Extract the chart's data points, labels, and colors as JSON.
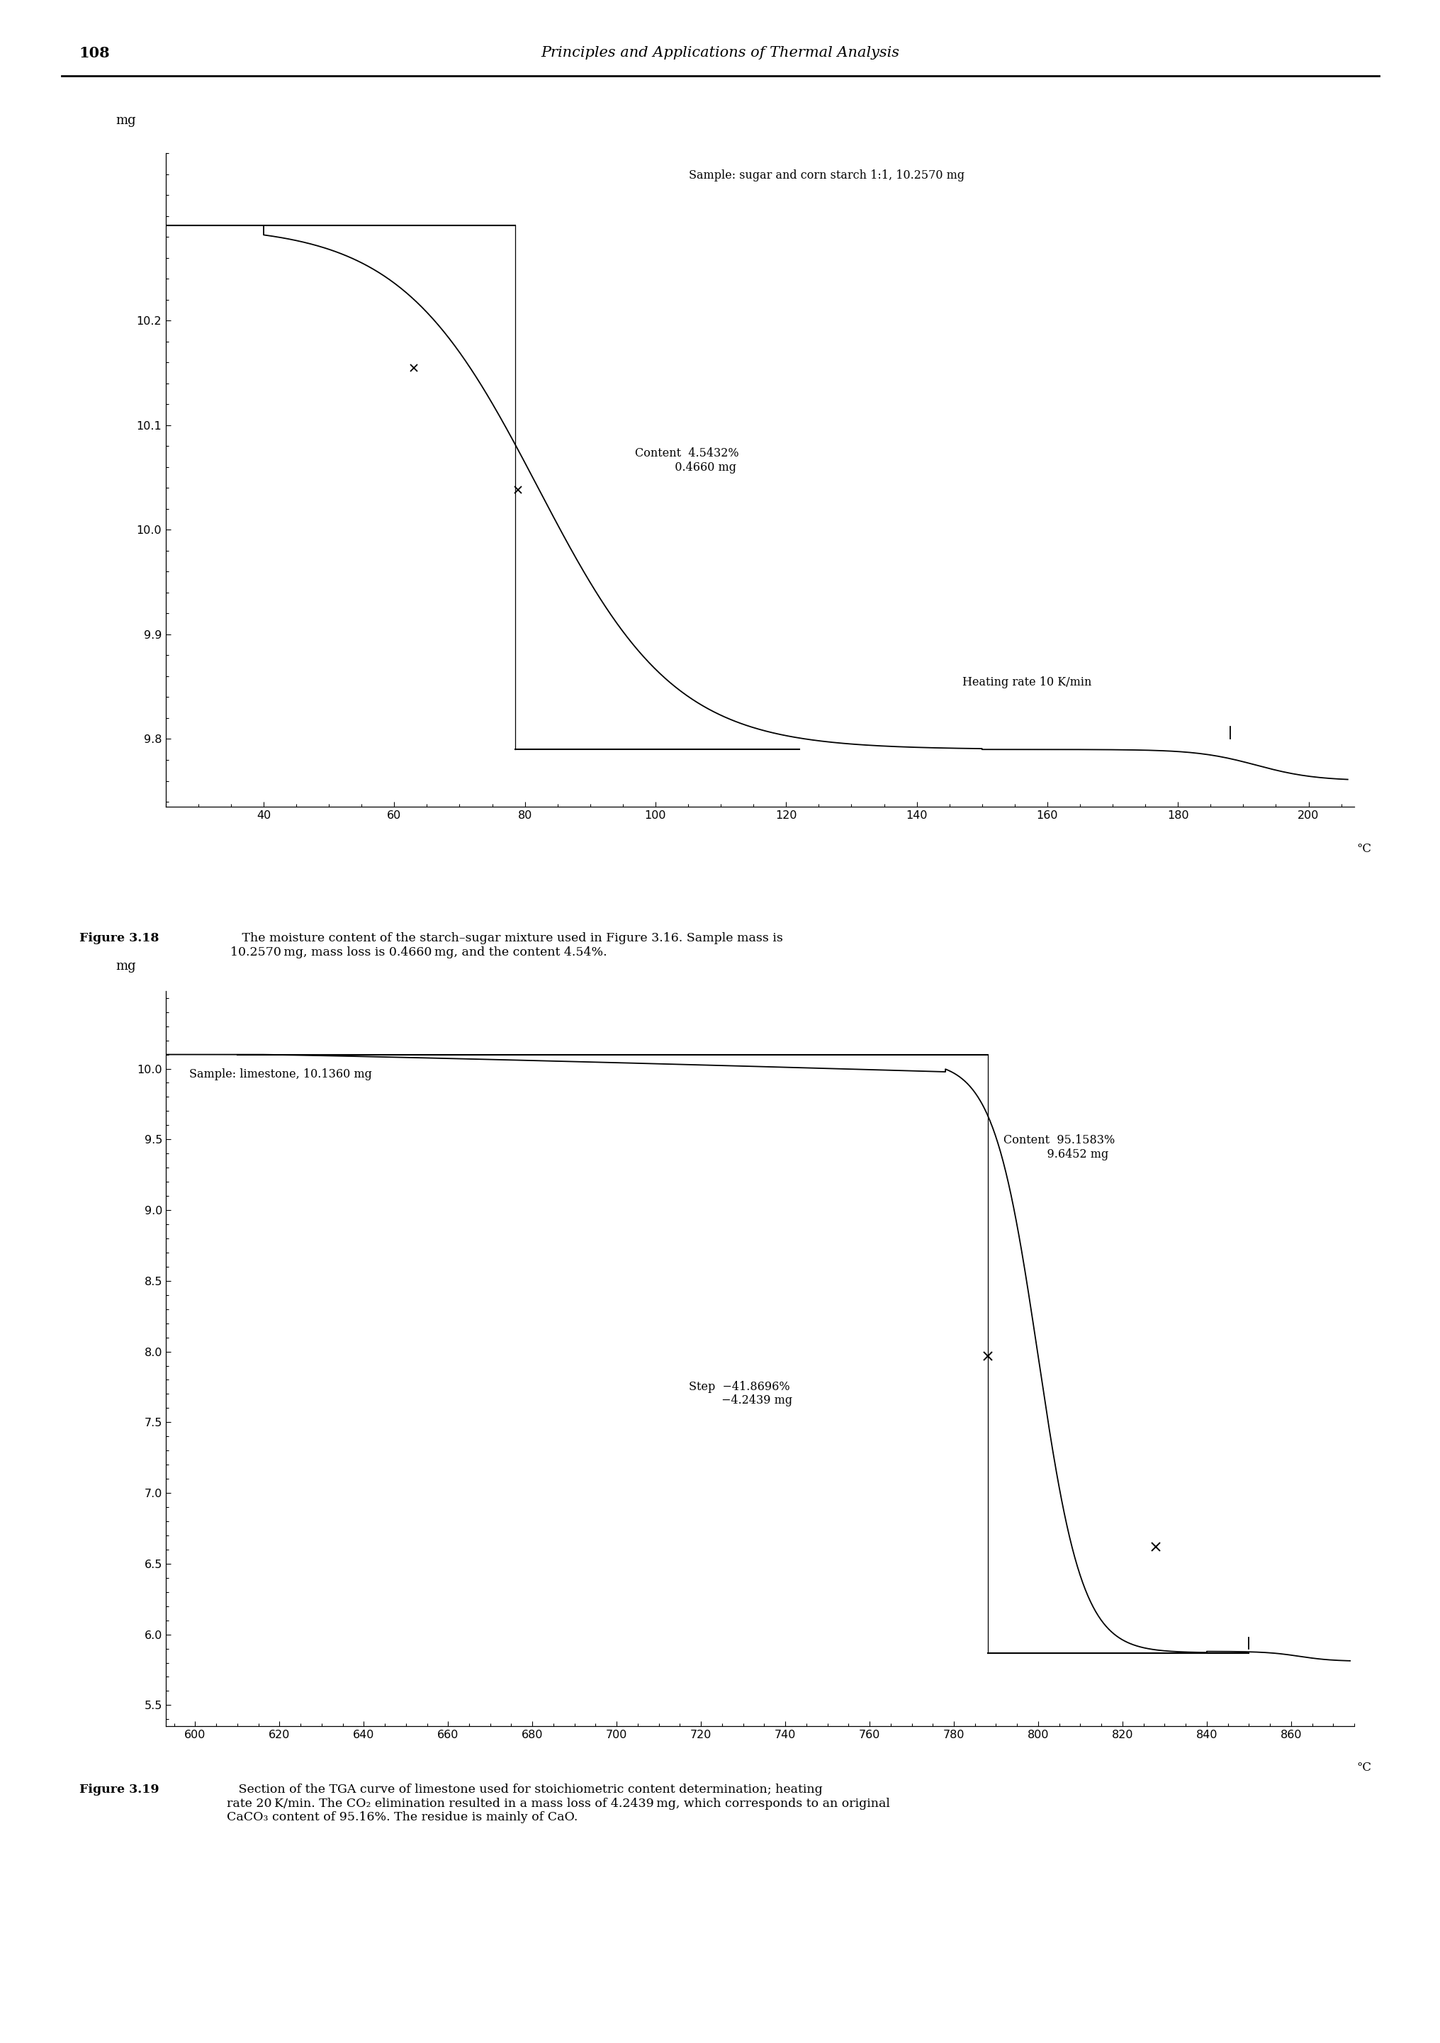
{
  "page_number": "108",
  "header_title": "Principles and Applications of Thermal Analysis",
  "fig1": {
    "sample_label": "Sample: sugar and corn starch 1:1, 10.2570 mg",
    "heating_rate_label": "Heating rate 10 K/min",
    "content_label": "Content  4.5432%\n           0.4660 mg",
    "ylabel": "mg",
    "xlabel": "°C",
    "xlim": [
      25,
      207
    ],
    "ylim": [
      9.735,
      10.36
    ],
    "xticks": [
      40,
      60,
      80,
      100,
      120,
      140,
      160,
      180,
      200
    ],
    "yticks": [
      9.8,
      9.9,
      10.0,
      10.1,
      10.2
    ]
  },
  "fig2": {
    "sample_label": "Sample: limestone, 10.1360 mg",
    "content_label": "Content  95.1583%\n            9.6452 mg",
    "step_label": "Step  −41.8696%\n         −4.2439 mg",
    "ylabel": "mg",
    "xlabel": "°C",
    "xlim": [
      593,
      875
    ],
    "ylim": [
      5.35,
      10.55
    ],
    "xticks": [
      600,
      620,
      640,
      660,
      680,
      700,
      720,
      740,
      760,
      780,
      800,
      820,
      840,
      860
    ],
    "yticks": [
      5.5,
      6.0,
      6.5,
      7.0,
      7.5,
      8.0,
      8.5,
      9.0,
      9.5,
      10.0
    ]
  },
  "fig1_caption_bold": "Figure 3.18",
  "fig1_caption_rest": "   The moisture content of the starch–sugar mixture used in Figure 3.16. Sample mass is\n10.2570 mg, mass loss is 0.4660 mg, and the content 4.54%.",
  "fig2_caption_bold": "Figure 3.19",
  "fig2_caption_rest": "   Section of the TGA curve of limestone used for stoichiometric content determination; heating\nrate 20 K/min. The CO₂ elimination resulted in a mass loss of 4.2439 mg, which corresponds to an original\nCaCO₃ content of 95.16%. The residue is mainly of CaO."
}
